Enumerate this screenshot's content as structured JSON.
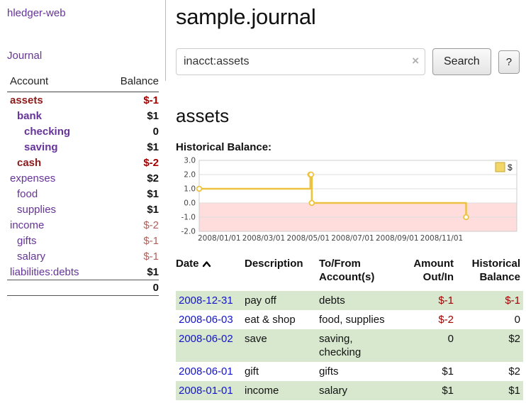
{
  "colors": {
    "purple": "#663399",
    "maroon": "#8b1a1a",
    "neg": "#a40000",
    "neg-muted": "#b0605c",
    "link-blue": "#1414c8",
    "row-green": "#d7e8cf",
    "chart-line": "#edc240",
    "chart-fill-neg": "#ffdddd"
  },
  "sidebar": {
    "app_title": "hledger-web",
    "nav": {
      "journal": "Journal"
    },
    "accounts": {
      "header": {
        "account": "Account",
        "balance": "Balance"
      },
      "rows": [
        {
          "name": "assets",
          "balance": "$-1"
        },
        {
          "name": "bank",
          "balance": "$1"
        },
        {
          "name": "checking",
          "balance": "0"
        },
        {
          "name": "saving",
          "balance": "$1"
        },
        {
          "name": "cash",
          "balance": "$-2"
        },
        {
          "name": "expenses",
          "balance": "$2"
        },
        {
          "name": "food",
          "balance": "$1"
        },
        {
          "name": "supplies",
          "balance": "$1"
        },
        {
          "name": "income",
          "balance": "$-2"
        },
        {
          "name": "gifts",
          "balance": "$-1"
        },
        {
          "name": "salary",
          "balance": "$-1"
        },
        {
          "name": "liabilities:debts",
          "balance": "$1"
        }
      ],
      "total": "0"
    }
  },
  "main": {
    "title": "sample.journal",
    "search": {
      "value": "inacct:assets",
      "clear": "×",
      "button": "Search",
      "help": "?"
    },
    "account_heading": "assets",
    "chart_title": "Historical Balance:"
  },
  "chart_data": {
    "type": "line",
    "step": true,
    "title": "Historical Balance",
    "xlabel": "",
    "ylabel": "",
    "ylim": [
      -2.0,
      3.0
    ],
    "yticks": [
      3.0,
      2.0,
      1.0,
      0.0,
      -1.0,
      -2.0
    ],
    "x_start": "2008-01-01",
    "x_span_years": 1.19,
    "xticks": [
      "2008/01/01",
      "2008/03/01",
      "2008/05/01",
      "2008/07/01",
      "2008/09/01",
      "2008/11/01"
    ],
    "series": [
      {
        "name": "$",
        "points": [
          [
            "2008-01-01",
            1
          ],
          [
            "2008-06-01",
            2
          ],
          [
            "2008-06-02",
            2
          ],
          [
            "2008-06-03",
            0
          ],
          [
            "2008-12-31",
            -1
          ]
        ]
      }
    ],
    "negative_region_shaded": true,
    "legend": {
      "position": "top-right",
      "label": "$"
    },
    "grid": true
  },
  "register": {
    "headers": {
      "date": "Date",
      "description": "Description",
      "accounts_line1": "To/From",
      "accounts_line2": "Account(s)",
      "amount_line1": "Amount",
      "amount_line2": "Out/In",
      "balance_line1": "Historical",
      "balance_line2": "Balance"
    },
    "rows": [
      {
        "date": "2008-12-31",
        "description": "pay off",
        "accounts": "debts",
        "amount": "$-1",
        "balance": "$-1"
      },
      {
        "date": "2008-06-03",
        "description": "eat & shop",
        "accounts": "food, supplies",
        "amount": "$-2",
        "balance": "0"
      },
      {
        "date": "2008-06-02",
        "description": "save",
        "accounts": "saving, checking",
        "amount": "0",
        "balance": "$2"
      },
      {
        "date": "2008-06-01",
        "description": "gift",
        "accounts": "gifts",
        "amount": "$1",
        "balance": "$2"
      },
      {
        "date": "2008-01-01",
        "description": "income",
        "accounts": "salary",
        "amount": "$1",
        "balance": "$1"
      }
    ]
  }
}
